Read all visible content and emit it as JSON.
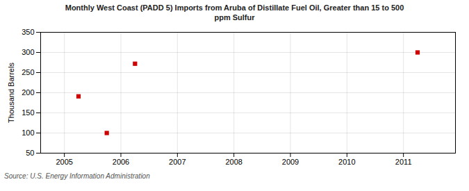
{
  "chart_data": {
    "type": "scatter",
    "title": "Monthly West Coast (PADD 5) Imports from Aruba of Distillate Fuel Oil, Greater than 15 to 500\nppm Sulfur",
    "ylabel": "Thousand Barrels",
    "source": "Source: U.S. Energy Information Administration",
    "x": [
      2005.25,
      2005.75,
      2006.25,
      2011.25
    ],
    "values": [
      191,
      100,
      272,
      300
    ],
    "color": "#cc0000",
    "marker": "square",
    "xlim": [
      2004.58,
      2011.92
    ],
    "ylim": [
      50,
      350
    ],
    "xticks": [
      2005,
      2006,
      2007,
      2008,
      2009,
      2010,
      2011
    ],
    "yticks": [
      50,
      100,
      150,
      200,
      250,
      300,
      350
    ],
    "grid": true
  }
}
